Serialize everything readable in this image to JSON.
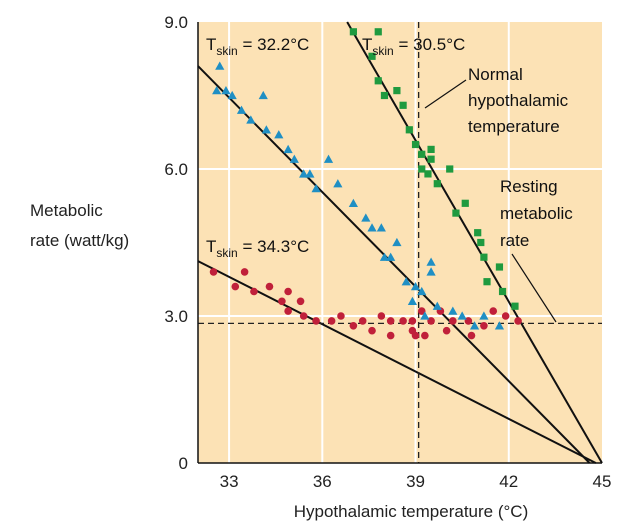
{
  "chart_data": {
    "type": "scatter",
    "xlabel": "Hypothalamic temperature (°C)",
    "ylabel_lines": [
      "Metabolic",
      "rate (watt/kg)"
    ],
    "xlim": [
      32.0,
      45.0
    ],
    "ylim": [
      0,
      9.0
    ],
    "x_ticks": [
      {
        "value": 33,
        "label": "33"
      },
      {
        "value": 36,
        "label": "36"
      },
      {
        "value": 39,
        "label": "39"
      },
      {
        "value": 42,
        "label": "42"
      },
      {
        "value": 45,
        "label": "45"
      }
    ],
    "y_ticks": [
      {
        "value": 0,
        "label": "0"
      },
      {
        "value": 3.0,
        "label": "3.0"
      },
      {
        "value": 6.0,
        "label": "6.0"
      },
      {
        "value": 9.0,
        "label": "9.0"
      }
    ],
    "grid": true,
    "background_color": "#fce2b5",
    "grid_color": "#ffffff",
    "series": [
      {
        "label_prefix": "T",
        "label_sub": "skin",
        "label_suffix": " = 34.3°C",
        "marker": "circle",
        "color": "#c0203a",
        "line": {
          "x1": 32.0,
          "y1": 4.12,
          "x2": 44.8,
          "y2": 0
        },
        "points": [
          [
            32.5,
            3.9
          ],
          [
            33.2,
            3.6
          ],
          [
            33.5,
            3.9
          ],
          [
            33.8,
            3.5
          ],
          [
            34.3,
            3.6
          ],
          [
            34.7,
            3.3
          ],
          [
            34.9,
            3.1
          ],
          [
            34.9,
            3.5
          ],
          [
            35.3,
            3.3
          ],
          [
            35.4,
            3.0
          ],
          [
            35.8,
            2.9
          ],
          [
            36.3,
            2.9
          ],
          [
            36.6,
            3.0
          ],
          [
            37.0,
            2.8
          ],
          [
            37.3,
            2.9
          ],
          [
            37.6,
            2.7
          ],
          [
            37.9,
            3.0
          ],
          [
            38.2,
            2.9
          ],
          [
            38.2,
            2.6
          ],
          [
            38.6,
            2.9
          ],
          [
            38.9,
            2.7
          ],
          [
            38.9,
            2.9
          ],
          [
            39.0,
            2.6
          ],
          [
            39.2,
            3.1
          ],
          [
            39.3,
            2.6
          ],
          [
            39.5,
            2.9
          ],
          [
            39.8,
            3.1
          ],
          [
            40.0,
            2.7
          ],
          [
            40.2,
            2.9
          ],
          [
            40.7,
            2.9
          ],
          [
            40.8,
            2.6
          ],
          [
            41.2,
            2.8
          ],
          [
            41.5,
            3.1
          ],
          [
            41.9,
            3.0
          ],
          [
            42.3,
            2.9
          ]
        ]
      },
      {
        "label_prefix": "T",
        "label_sub": "skin",
        "label_suffix": " = 32.2°C",
        "marker": "triangle",
        "color": "#1f8fc4",
        "line": {
          "x1": 32.0,
          "y1": 8.1,
          "x2": 44.6,
          "y2": 0
        },
        "points": [
          [
            32.7,
            8.1
          ],
          [
            32.6,
            7.6
          ],
          [
            32.9,
            7.6
          ],
          [
            33.1,
            7.5
          ],
          [
            33.4,
            7.2
          ],
          [
            33.7,
            7.0
          ],
          [
            34.1,
            7.5
          ],
          [
            34.2,
            6.8
          ],
          [
            34.6,
            6.7
          ],
          [
            34.9,
            6.4
          ],
          [
            35.1,
            6.2
          ],
          [
            35.4,
            5.9
          ],
          [
            35.6,
            5.9
          ],
          [
            35.8,
            5.6
          ],
          [
            36.2,
            6.2
          ],
          [
            36.5,
            5.7
          ],
          [
            37.0,
            5.3
          ],
          [
            37.4,
            5.0
          ],
          [
            37.6,
            4.8
          ],
          [
            37.9,
            4.8
          ],
          [
            38.0,
            4.2
          ],
          [
            38.2,
            4.2
          ],
          [
            38.4,
            4.5
          ],
          [
            38.7,
            3.7
          ],
          [
            38.9,
            3.3
          ],
          [
            39.0,
            3.6
          ],
          [
            39.2,
            3.5
          ],
          [
            39.3,
            3.0
          ],
          [
            39.5,
            3.9
          ],
          [
            39.5,
            4.1
          ],
          [
            39.7,
            3.2
          ],
          [
            40.2,
            3.1
          ],
          [
            40.5,
            3.0
          ],
          [
            40.9,
            2.8
          ],
          [
            41.2,
            3.0
          ],
          [
            41.7,
            2.8
          ]
        ]
      },
      {
        "label_prefix": "T",
        "label_sub": "skin",
        "label_suffix": " = 30.5°C",
        "marker": "square",
        "color": "#1f9a3f",
        "line": {
          "x1": 36.8,
          "y1": 9.0,
          "x2": 45.0,
          "y2": 0
        },
        "points": [
          [
            37.0,
            8.8
          ],
          [
            37.6,
            8.3
          ],
          [
            37.8,
            8.8
          ],
          [
            37.8,
            7.8
          ],
          [
            38.0,
            7.5
          ],
          [
            38.4,
            7.6
          ],
          [
            38.6,
            7.3
          ],
          [
            38.8,
            6.8
          ],
          [
            39.0,
            6.5
          ],
          [
            39.2,
            6.3
          ],
          [
            39.2,
            6.0
          ],
          [
            39.4,
            5.9
          ],
          [
            39.5,
            6.4
          ],
          [
            39.5,
            6.2
          ],
          [
            39.7,
            5.7
          ],
          [
            40.1,
            6.0
          ],
          [
            40.3,
            5.1
          ],
          [
            40.6,
            5.3
          ],
          [
            41.0,
            4.7
          ],
          [
            41.1,
            4.5
          ],
          [
            41.2,
            4.2
          ],
          [
            41.3,
            3.7
          ],
          [
            41.7,
            4.0
          ],
          [
            41.8,
            3.5
          ],
          [
            42.2,
            3.2
          ]
        ]
      }
    ],
    "reference_lines": [
      {
        "orientation": "vertical",
        "value": 39.1,
        "label_lines": [
          "Normal",
          "hypothalamic",
          "temperature"
        ]
      },
      {
        "orientation": "horizontal",
        "value": 2.85,
        "label_lines": [
          "Resting",
          "metabolic",
          "rate"
        ]
      }
    ]
  }
}
